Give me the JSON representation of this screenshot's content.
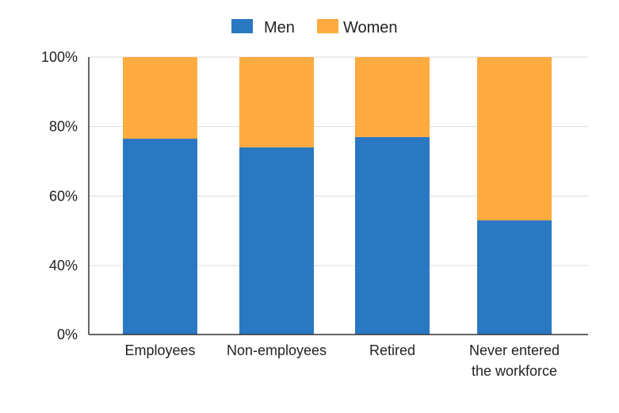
{
  "chart_data": {
    "type": "bar",
    "stacked": true,
    "normalized_percent": true,
    "categories": [
      [
        "Employees"
      ],
      [
        "Non-employees"
      ],
      [
        "Retired"
      ],
      [
        "Never entered",
        "the workforce"
      ]
    ],
    "series": [
      {
        "name": "Men",
        "color": "#2b78c2",
        "values": [
          76.5,
          74,
          77,
          53
        ]
      },
      {
        "name": "Women",
        "color": "#ffab40",
        "values": [
          23.5,
          26,
          23,
          47
        ]
      }
    ],
    "y_ticks": [
      "0%",
      "40%",
      "60%",
      "80%",
      "100%"
    ],
    "title": "",
    "xlabel": "",
    "ylabel": "",
    "ylim": [
      0,
      100
    ],
    "y_axis_note": "axis jumps from 0% to 40% (broken scale)",
    "grid": true,
    "legend_position": "top-center"
  }
}
